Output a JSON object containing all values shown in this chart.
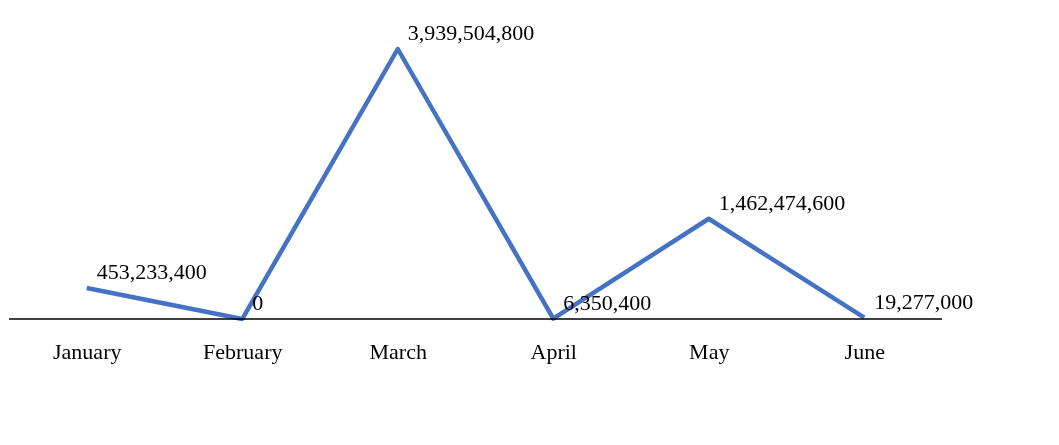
{
  "chart_data": {
    "type": "line",
    "categories": [
      "January",
      "February",
      "March",
      "April",
      "May",
      "June"
    ],
    "series": [
      {
        "color": "#4472c4",
        "values": [
          453233400,
          0,
          3939504800,
          6350400,
          1462474600,
          19277000
        ],
        "value_labels": [
          "453,233,400",
          "0",
          "3,939,504,800",
          "6,350,400",
          "1,462,474,600",
          "19,277,000"
        ]
      }
    ],
    "grid": false,
    "legend": false,
    "tick_labels": "x",
    "marker": "none",
    "line_style": "solid"
  }
}
